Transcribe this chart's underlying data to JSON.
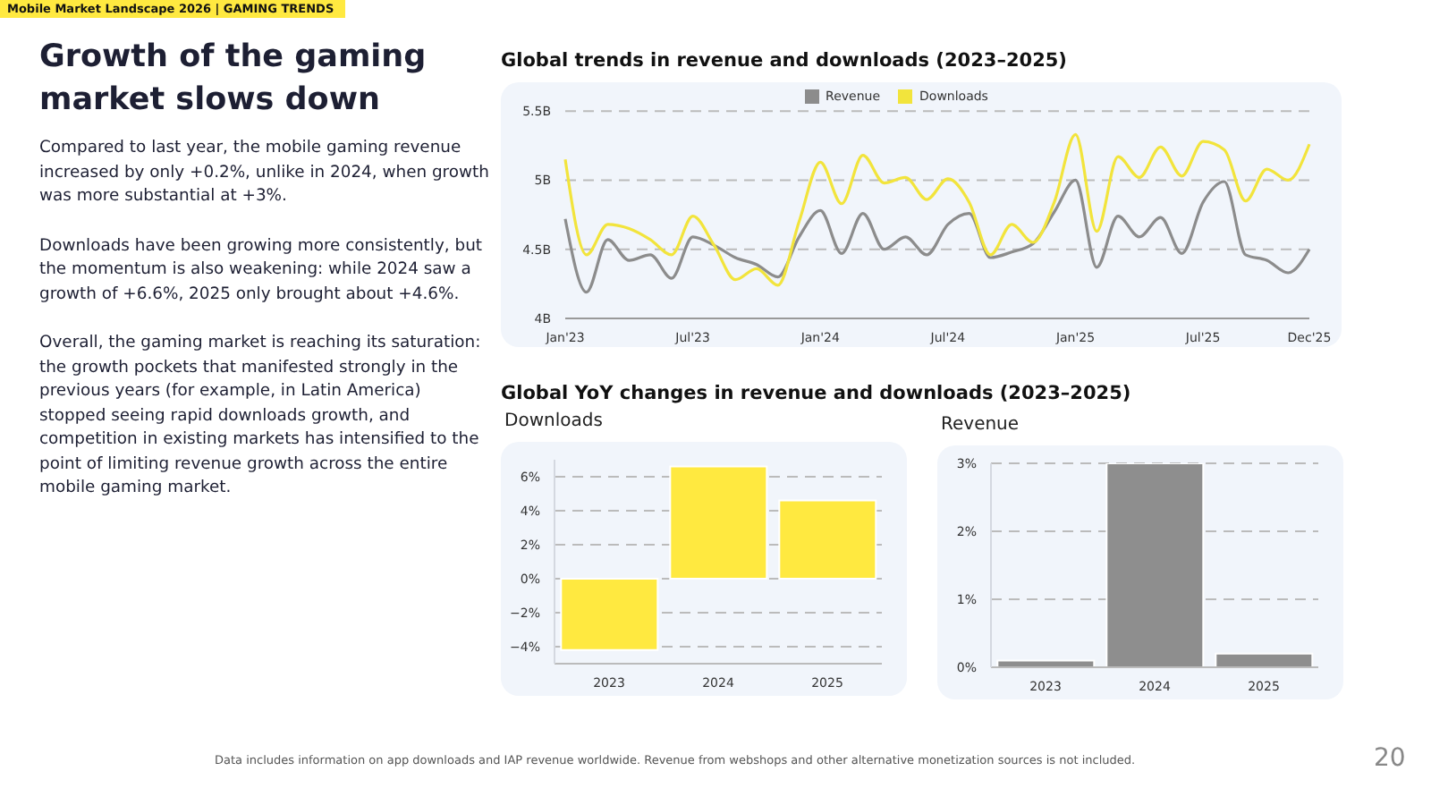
{
  "chart_data": [
    {
      "type": "other",
      "title": "Growth of the gaming market slows down",
      "annotations": [
        "Mobile Market Landscape 2026 | GAMING TRENDS",
        "Compared to last year, the mobile gaming revenue increased by only +0.2%, unlike in 2024, when growth was more substantial at +3%.",
        "Downloads have been growing more consistently, but the momentum is also weakening: while 2024 saw a growth of +6.6%, 2025 only brought about +4.6%.",
        "Overall, the gaming market is reaching its saturation: the growth pockets that manifested strongly in the previous years (for example, in Latin America) stopped seeing rapid downloads growth, and competition in existing markets has intensified to the point of limiting revenue growth across the entire mobile gaming market.",
        "Data includes information on app downloads and IAP revenue worldwide. Revenue from webshops and other alternative monetization sources is not included.",
        "20"
      ]
    },
    {
      "type": "line",
      "title": "Global trends in revenue and downloads (2023–2025)",
      "categories": [
        "Jan'23",
        null,
        null,
        null,
        null,
        null,
        "Jul'23",
        null,
        null,
        null,
        null,
        null,
        "Jan'24",
        null,
        null,
        null,
        null,
        null,
        "Jul'24",
        null,
        null,
        null,
        null,
        null,
        "Jan'25",
        null,
        null,
        null,
        null,
        null,
        "Jul'25",
        null,
        null,
        null,
        null,
        "Dec'25"
      ],
      "series": [
        {
          "name": "Revenue",
          "color": "#8c8c8c",
          "values": [
            4.72,
            4.19,
            4.57,
            4.42,
            4.46,
            4.29,
            4.59,
            4.53,
            4.44,
            4.39,
            4.3,
            4.59,
            4.78,
            4.47,
            4.76,
            4.5,
            4.59,
            4.46,
            4.68,
            4.76,
            4.44,
            4.48,
            4.54,
            4.77,
            5.0,
            4.37,
            4.74,
            4.59,
            4.73,
            4.47,
            4.84,
            4.99,
            4.46,
            4.42,
            4.33,
            4.5
          ]
        },
        {
          "name": "Downloads",
          "color": "#f2e43c",
          "values": [
            5.15,
            4.46,
            4.68,
            4.65,
            4.57,
            4.46,
            4.74,
            4.53,
            4.28,
            4.36,
            4.24,
            4.7,
            5.13,
            4.83,
            5.18,
            4.98,
            5.02,
            4.86,
            5.01,
            4.84,
            4.46,
            4.68,
            4.55,
            4.84,
            5.33,
            4.63,
            5.17,
            5.02,
            5.24,
            5.03,
            5.28,
            5.22,
            4.85,
            5.08,
            5.0,
            5.26
          ]
        }
      ],
      "ylim": [
        4,
        5.5
      ],
      "yticks": [
        {
          "value": 4,
          "label": "4B"
        },
        {
          "value": 4.5,
          "label": "4.5B"
        },
        {
          "value": 5,
          "label": "5B"
        },
        {
          "value": 5.5,
          "label": "5.5B"
        }
      ],
      "grid": "y",
      "legend": "top",
      "marker": "none",
      "line_style": "solid"
    },
    {
      "type": "bar",
      "title": "Global YoY changes in revenue and downloads (2023–2025)",
      "subtitle": "Downloads",
      "categories": [
        "2023",
        "2024",
        "2025"
      ],
      "values": [
        -4.2,
        6.6,
        4.6
      ],
      "color": "#ffe940",
      "ylim": [
        -5,
        7
      ],
      "yticks": [
        {
          "value": -4,
          "label": "−4%"
        },
        {
          "value": -2,
          "label": "−2%"
        },
        {
          "value": 0,
          "label": "0%"
        },
        {
          "value": 2,
          "label": "2%"
        },
        {
          "value": 4,
          "label": "4%"
        },
        {
          "value": 6,
          "label": "6%"
        }
      ],
      "grid": "y"
    },
    {
      "type": "bar",
      "subtitle": "Revenue",
      "categories": [
        "2023",
        "2024",
        "2025"
      ],
      "values": [
        0.1,
        3,
        0.2
      ],
      "color": "#8e8e8e",
      "ylim": [
        0,
        3
      ],
      "yticks": [
        {
          "value": 0,
          "label": "0%"
        },
        {
          "value": 1,
          "label": "1%"
        },
        {
          "value": 2,
          "label": "2%"
        },
        {
          "value": 3,
          "label": "3%"
        }
      ],
      "grid": "y"
    }
  ]
}
